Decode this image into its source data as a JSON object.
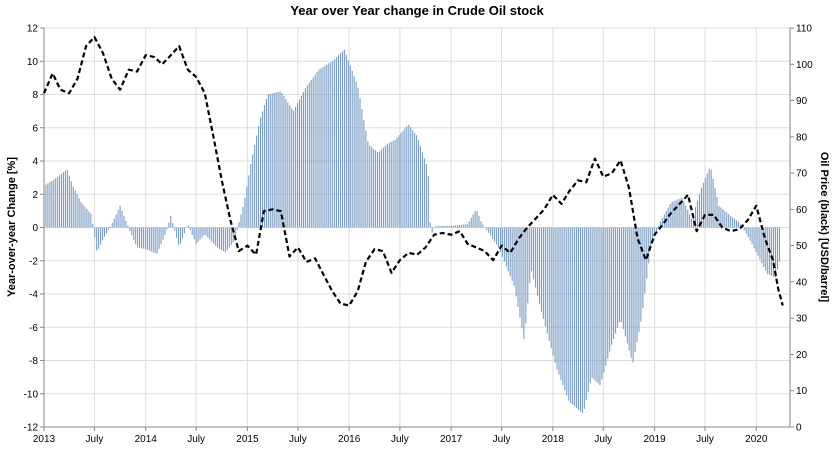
{
  "chart_data": {
    "type": "bar+line",
    "title": "Year over Year change in Crude Oil stock",
    "y_left_label": "Year-over-year Change [%]",
    "y_right_label": "Oil Price (black) [USD/barrel]",
    "y_left_range": [
      -12,
      12
    ],
    "y_left_ticks": [
      -12,
      -10,
      -8,
      -6,
      -4,
      -2,
      0,
      2,
      4,
      6,
      8,
      10,
      12
    ],
    "y_right_range": [
      0,
      110
    ],
    "y_right_ticks": [
      0,
      10,
      20,
      30,
      40,
      50,
      60,
      70,
      80,
      90,
      100,
      110
    ],
    "x_range": [
      "2013-01-01",
      "2020-05-01"
    ],
    "x_ticks": [
      {
        "date": "2013-01-01",
        "label": "2013"
      },
      {
        "date": "2013-07-01",
        "label": "July"
      },
      {
        "date": "2014-01-01",
        "label": "2014"
      },
      {
        "date": "2014-07-01",
        "label": "July"
      },
      {
        "date": "2015-01-01",
        "label": "2015"
      },
      {
        "date": "2015-07-01",
        "label": "July"
      },
      {
        "date": "2016-01-01",
        "label": "2016"
      },
      {
        "date": "2016-07-01",
        "label": "July"
      },
      {
        "date": "2017-01-01",
        "label": "2017"
      },
      {
        "date": "2017-07-01",
        "label": "July"
      },
      {
        "date": "2018-01-01",
        "label": "2018"
      },
      {
        "date": "2018-07-01",
        "label": "July"
      },
      {
        "date": "2019-01-01",
        "label": "2019"
      },
      {
        "date": "2019-07-01",
        "label": "July"
      },
      {
        "date": "2020-01-01",
        "label": "2020"
      }
    ],
    "grid": "vertical-weekly",
    "bar_series": {
      "name": "Year-over-year Change",
      "frequency": "weekly",
      "color": "#7b9cc4",
      "anchors": [
        [
          "2013-01-01",
          2.5
        ],
        [
          "2013-02-15",
          3.0
        ],
        [
          "2013-03-25",
          3.5
        ],
        [
          "2013-04-15",
          2.5
        ],
        [
          "2013-05-15",
          1.5
        ],
        [
          "2013-06-20",
          0.8
        ],
        [
          "2013-07-10",
          -1.5
        ],
        [
          "2013-08-01",
          -0.7
        ],
        [
          "2013-09-01",
          0.2
        ],
        [
          "2013-10-01",
          1.3
        ],
        [
          "2013-11-05",
          -0.2
        ],
        [
          "2013-12-01",
          -1.2
        ],
        [
          "2014-01-01",
          -1.3
        ],
        [
          "2014-02-10",
          -1.6
        ],
        [
          "2014-03-15",
          -0.3
        ],
        [
          "2014-04-01",
          0.7
        ],
        [
          "2014-05-01",
          -1.2
        ],
        [
          "2014-06-01",
          0.2
        ],
        [
          "2014-07-01",
          -1.0
        ],
        [
          "2014-08-01",
          -0.4
        ],
        [
          "2014-09-15",
          -1.2
        ],
        [
          "2014-10-15",
          -1.5
        ],
        [
          "2014-11-15",
          -0.8
        ],
        [
          "2014-12-20",
          1.5
        ],
        [
          "2015-01-15",
          4.0
        ],
        [
          "2015-02-15",
          6.5
        ],
        [
          "2015-03-15",
          8.0
        ],
        [
          "2015-05-01",
          8.2
        ],
        [
          "2015-06-15",
          7.0
        ],
        [
          "2015-08-01",
          8.5
        ],
        [
          "2015-09-15",
          9.5
        ],
        [
          "2015-11-01",
          10.0
        ],
        [
          "2015-12-15",
          10.7
        ],
        [
          "2016-02-01",
          8.5
        ],
        [
          "2016-03-10",
          5.0
        ],
        [
          "2016-04-15",
          4.5
        ],
        [
          "2016-05-15",
          5.0
        ],
        [
          "2016-06-15",
          5.3
        ],
        [
          "2016-08-01",
          6.2
        ],
        [
          "2016-09-01",
          5.5
        ],
        [
          "2016-10-10",
          3.5
        ],
        [
          "2016-10-20",
          -0.5
        ],
        [
          "2016-11-05",
          0.1
        ],
        [
          "2017-01-01",
          0.1
        ],
        [
          "2017-03-01",
          0.2
        ],
        [
          "2017-04-01",
          1.1
        ],
        [
          "2017-04-20",
          0.3
        ],
        [
          "2017-05-15",
          -0.3
        ],
        [
          "2017-06-20",
          -1.2
        ],
        [
          "2017-08-15",
          -3.5
        ],
        [
          "2017-09-20",
          -6.8
        ],
        [
          "2017-10-15",
          -2.5
        ],
        [
          "2017-11-20",
          -5.0
        ],
        [
          "2018-01-15",
          -8.5
        ],
        [
          "2018-03-01",
          -10.5
        ],
        [
          "2018-04-20",
          -11.2
        ],
        [
          "2018-05-20",
          -9.0
        ],
        [
          "2018-06-20",
          -9.5
        ],
        [
          "2018-08-01",
          -7.0
        ],
        [
          "2018-09-01",
          -5.5
        ],
        [
          "2018-10-15",
          -8.2
        ],
        [
          "2018-11-15",
          -5.5
        ],
        [
          "2018-12-20",
          -1.0
        ],
        [
          "2019-01-20",
          0.3
        ],
        [
          "2019-03-01",
          1.5
        ],
        [
          "2019-04-10",
          1.8
        ],
        [
          "2019-05-15",
          0.5
        ],
        [
          "2019-06-20",
          2.5
        ],
        [
          "2019-07-20",
          3.7
        ],
        [
          "2019-08-20",
          1.3
        ],
        [
          "2019-10-01",
          0.7
        ],
        [
          "2019-11-01",
          0.3
        ],
        [
          "2019-12-01",
          -0.5
        ],
        [
          "2020-01-01",
          -1.5
        ],
        [
          "2020-02-10",
          -2.8
        ],
        [
          "2020-03-10",
          -3.0
        ],
        [
          "2020-03-25",
          -2.0
        ]
      ]
    },
    "line_series": {
      "name": "Oil Price",
      "color": "#000000",
      "style": "dashed",
      "points": [
        [
          "2013-01-01",
          92
        ],
        [
          "2013-02-01",
          97.5
        ],
        [
          "2013-03-01",
          93
        ],
        [
          "2013-04-01",
          92
        ],
        [
          "2013-05-01",
          96
        ],
        [
          "2013-06-01",
          105
        ],
        [
          "2013-07-01",
          107.5
        ],
        [
          "2013-08-01",
          103
        ],
        [
          "2013-09-01",
          96
        ],
        [
          "2013-10-01",
          93
        ],
        [
          "2013-11-01",
          98.5
        ],
        [
          "2013-12-01",
          98
        ],
        [
          "2014-01-01",
          102.5
        ],
        [
          "2014-02-01",
          102
        ],
        [
          "2014-03-01",
          100
        ],
        [
          "2014-04-01",
          102.5
        ],
        [
          "2014-05-01",
          105
        ],
        [
          "2014-06-01",
          98.5
        ],
        [
          "2014-07-01",
          96.5
        ],
        [
          "2014-08-01",
          92
        ],
        [
          "2014-09-01",
          80
        ],
        [
          "2014-10-01",
          68
        ],
        [
          "2014-11-01",
          57
        ],
        [
          "2014-12-01",
          48.5
        ],
        [
          "2015-01-01",
          50
        ],
        [
          "2015-02-01",
          47.5
        ],
        [
          "2015-03-01",
          59.5
        ],
        [
          "2015-04-01",
          60
        ],
        [
          "2015-05-01",
          59.5
        ],
        [
          "2015-06-01",
          47
        ],
        [
          "2015-07-01",
          49.5
        ],
        [
          "2015-08-01",
          45.5
        ],
        [
          "2015-09-01",
          46.5
        ],
        [
          "2015-10-01",
          42
        ],
        [
          "2015-11-01",
          37.5
        ],
        [
          "2015-12-01",
          34
        ],
        [
          "2016-01-01",
          33.5
        ],
        [
          "2016-02-01",
          37.5
        ],
        [
          "2016-03-01",
          45.5
        ],
        [
          "2016-04-01",
          49
        ],
        [
          "2016-05-01",
          48.5
        ],
        [
          "2016-06-01",
          42.5
        ],
        [
          "2016-07-01",
          46
        ],
        [
          "2016-08-01",
          48
        ],
        [
          "2016-09-01",
          47.5
        ],
        [
          "2016-10-01",
          49.5
        ],
        [
          "2016-11-01",
          53
        ],
        [
          "2016-12-01",
          53.5
        ],
        [
          "2017-01-01",
          53
        ],
        [
          "2017-02-01",
          54
        ],
        [
          "2017-03-01",
          50.5
        ],
        [
          "2017-04-01",
          49.5
        ],
        [
          "2017-05-01",
          48.5
        ],
        [
          "2017-06-01",
          46
        ],
        [
          "2017-07-01",
          50
        ],
        [
          "2017-08-01",
          48
        ],
        [
          "2017-09-01",
          52
        ],
        [
          "2017-10-01",
          55
        ],
        [
          "2017-11-01",
          57.5
        ],
        [
          "2017-12-01",
          60
        ],
        [
          "2018-01-01",
          64
        ],
        [
          "2018-02-01",
          61.5
        ],
        [
          "2018-03-01",
          65
        ],
        [
          "2018-04-01",
          68
        ],
        [
          "2018-05-01",
          67.5
        ],
        [
          "2018-06-01",
          74
        ],
        [
          "2018-07-01",
          69
        ],
        [
          "2018-08-01",
          70
        ],
        [
          "2018-09-01",
          73.5
        ],
        [
          "2018-10-01",
          66
        ],
        [
          "2018-11-01",
          52
        ],
        [
          "2018-12-01",
          46
        ],
        [
          "2019-01-01",
          53
        ],
        [
          "2019-02-01",
          56
        ],
        [
          "2019-03-01",
          59
        ],
        [
          "2019-04-01",
          61.5
        ],
        [
          "2019-05-01",
          64
        ],
        [
          "2019-06-01",
          54
        ],
        [
          "2019-07-01",
          58.5
        ],
        [
          "2019-08-01",
          58.5
        ],
        [
          "2019-09-01",
          55
        ],
        [
          "2019-10-01",
          54
        ],
        [
          "2019-11-01",
          54.5
        ],
        [
          "2019-12-01",
          57
        ],
        [
          "2020-01-01",
          61
        ],
        [
          "2020-02-01",
          52
        ],
        [
          "2020-03-01",
          46
        ],
        [
          "2020-03-20",
          38
        ],
        [
          "2020-04-05",
          33.5
        ]
      ]
    }
  }
}
